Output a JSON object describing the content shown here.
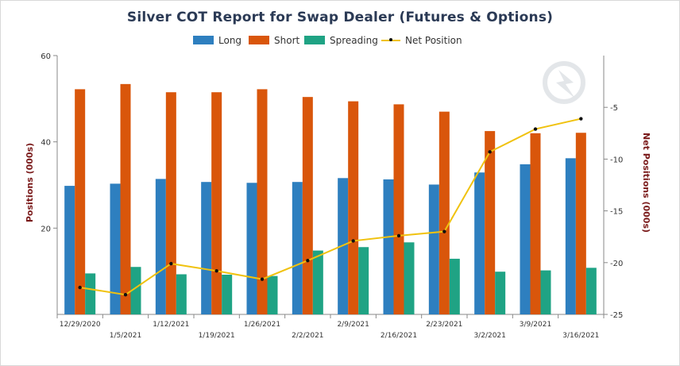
{
  "chart_data": {
    "type": "bar",
    "title": "Silver COT Report for Swap Dealer (Futures & Options)",
    "ylabel": "Positions (000s)",
    "y2label": "Net Positions (000s)",
    "ylim": [
      0,
      60
    ],
    "y_ticks": [
      20,
      40,
      60
    ],
    "y2lim": [
      -25,
      0
    ],
    "y2_ticks": [
      -25,
      -20,
      -15,
      -10,
      -5
    ],
    "categories": [
      "12/29/2020",
      "1/5/2021",
      "1/12/2021",
      "1/19/2021",
      "1/26/2021",
      "2/2/2021",
      "2/9/2021",
      "2/16/2021",
      "2/23/2021",
      "3/2/2021",
      "3/9/2021",
      "3/16/2021"
    ],
    "series": [
      {
        "name": "Long",
        "type": "bar",
        "axis": "left",
        "color": "#2e7fbf",
        "values": [
          29.8,
          30.3,
          31.4,
          30.7,
          30.5,
          30.7,
          31.6,
          31.3,
          30.1,
          32.9,
          34.8,
          36.2
        ]
      },
      {
        "name": "Short",
        "type": "bar",
        "axis": "left",
        "color": "#d9560b",
        "values": [
          52.2,
          53.4,
          51.5,
          51.5,
          52.2,
          50.4,
          49.4,
          48.7,
          47.0,
          42.5,
          42.0,
          42.1
        ]
      },
      {
        "name": "Spreading",
        "type": "bar",
        "axis": "left",
        "color": "#1fa384",
        "values": [
          9.5,
          11.0,
          9.3,
          9.2,
          8.9,
          14.8,
          15.6,
          16.7,
          12.9,
          9.9,
          10.2,
          10.8
        ]
      },
      {
        "name": "Net Position",
        "type": "line",
        "axis": "right",
        "color": "#f0c20f",
        "values": [
          -22.4,
          -23.1,
          -20.1,
          -20.8,
          -21.6,
          -19.8,
          -17.9,
          -17.4,
          -17.0,
          -9.3,
          -7.1,
          -6.1
        ]
      }
    ],
    "legend": "top-center",
    "grid": false
  }
}
